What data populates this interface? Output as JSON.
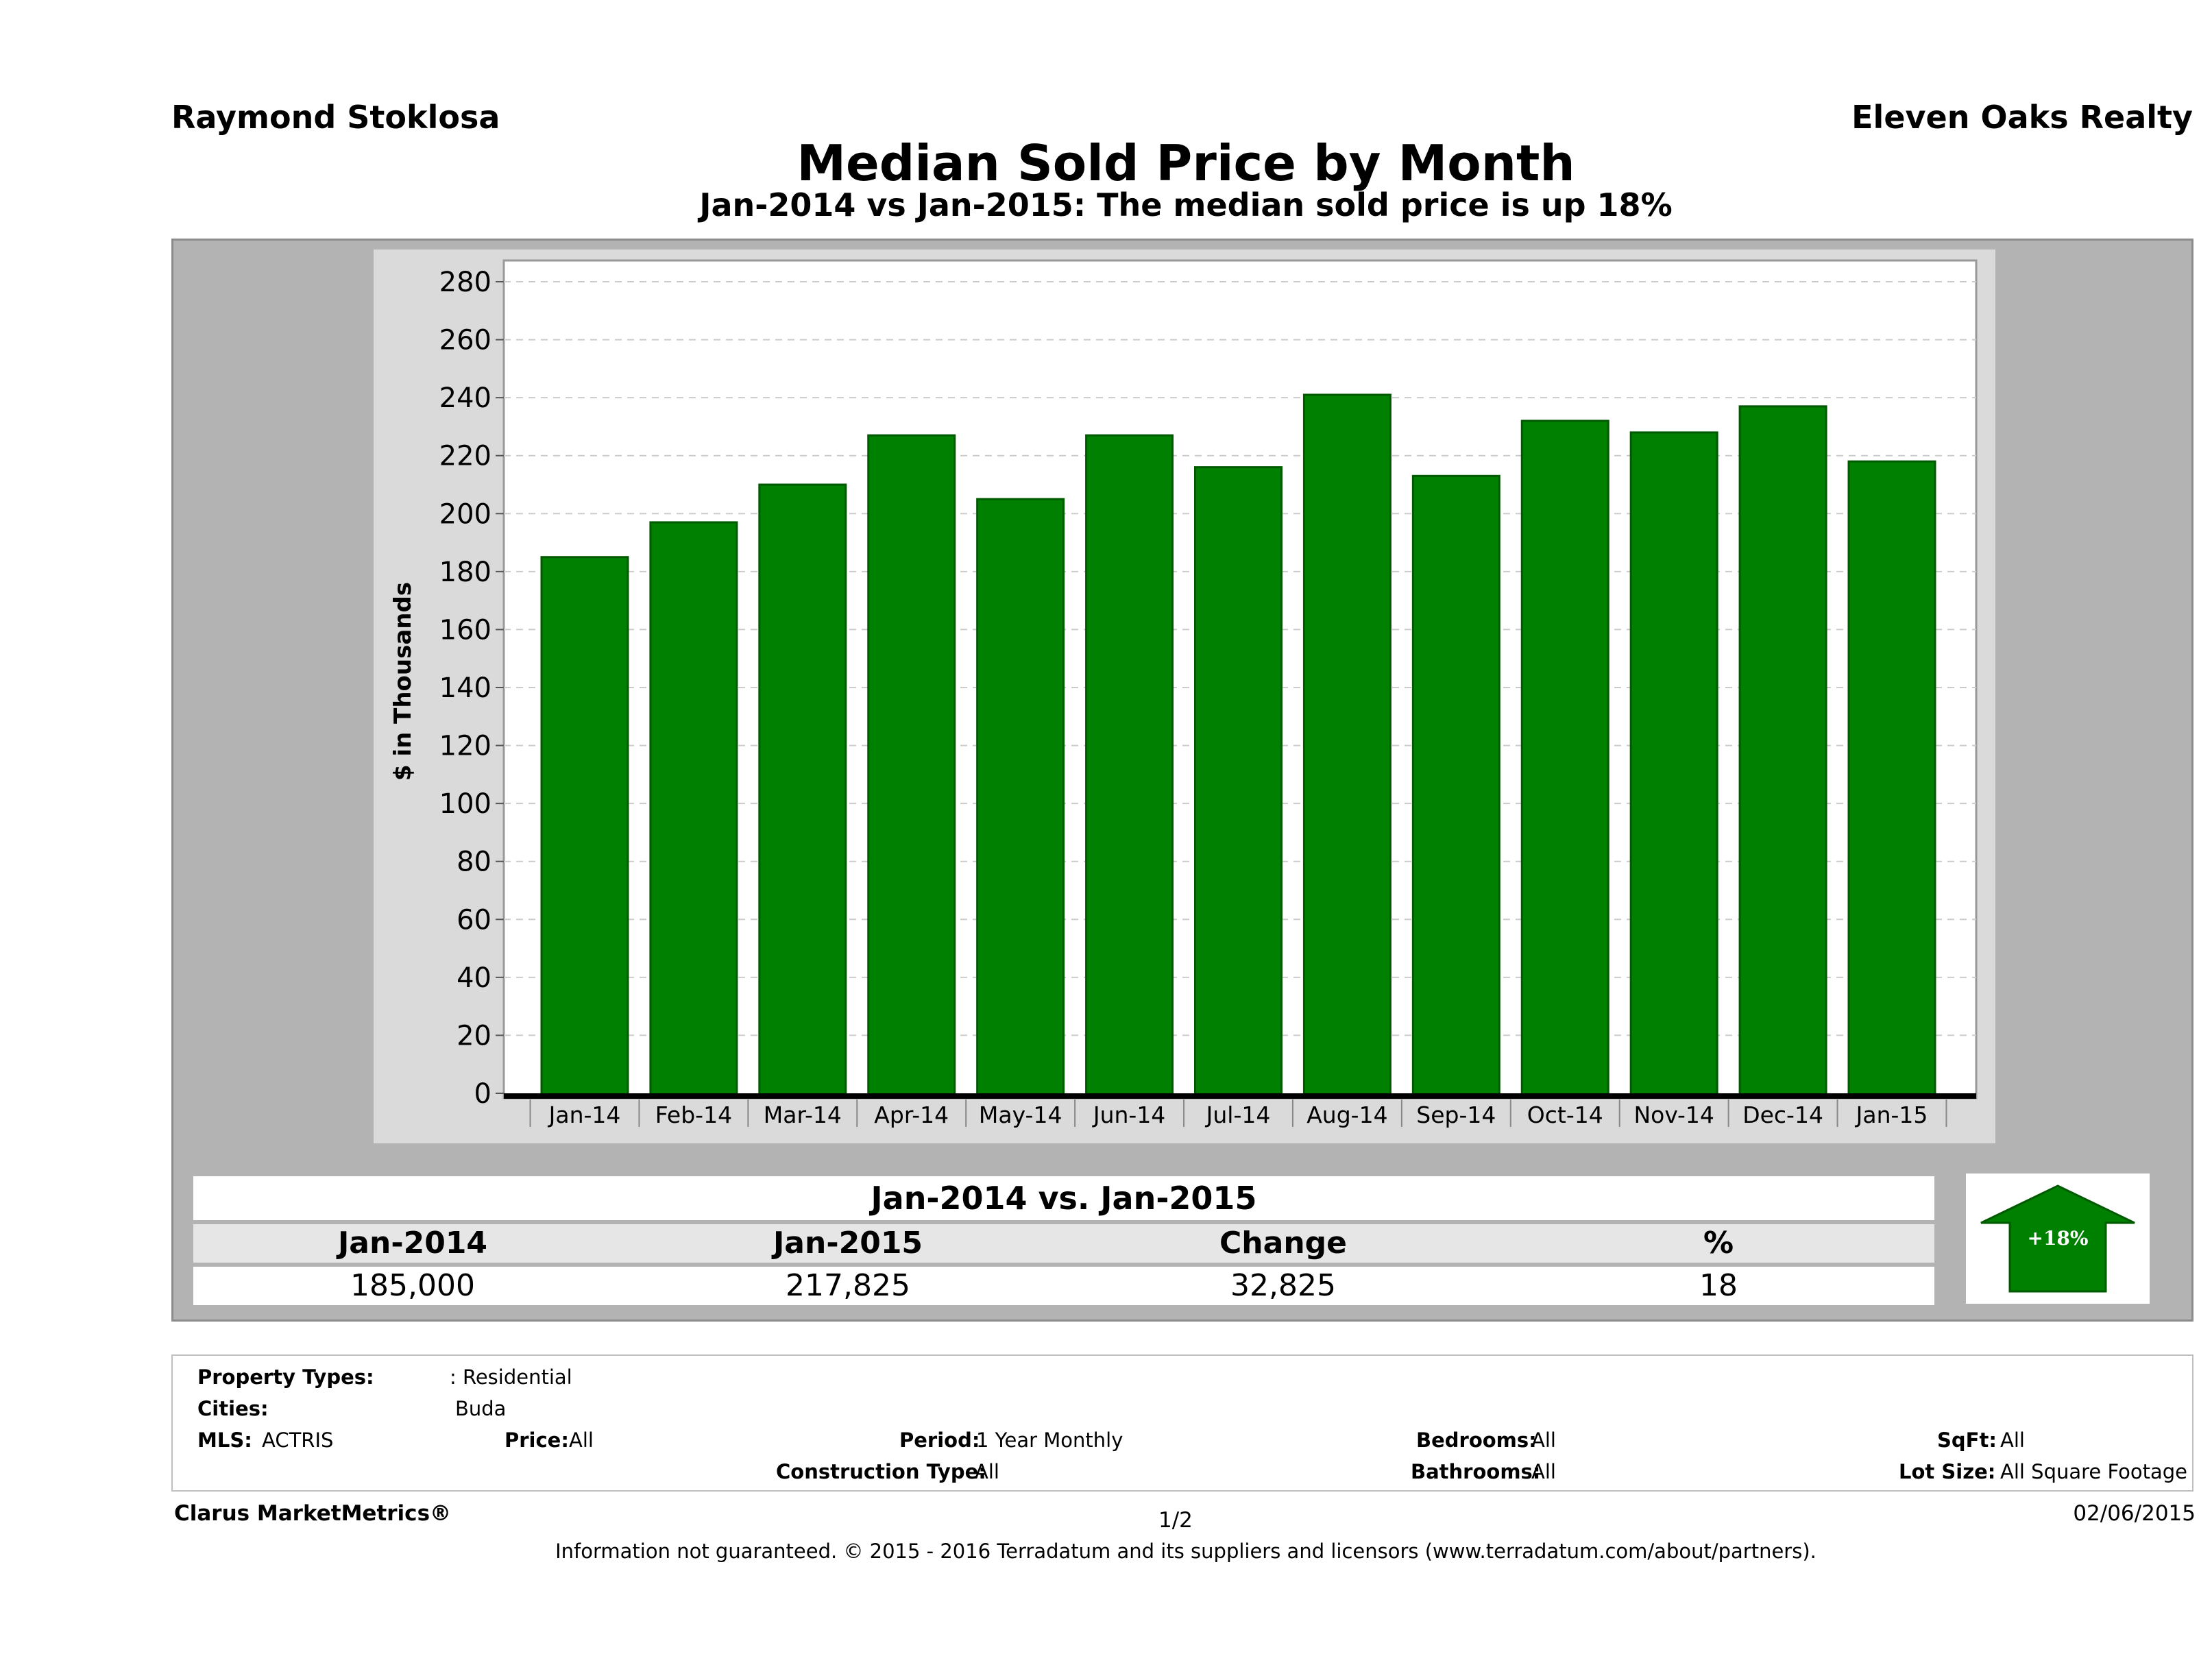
{
  "header": {
    "agent": "Raymond Stoklosa",
    "company": "Eleven Oaks Realty",
    "title": "Median Sold Price by Month",
    "subtitle": "Jan-2014 vs Jan-2015: The median sold price is up 18%"
  },
  "chart_data": {
    "type": "bar",
    "title": "Median Sold Price by Month",
    "subtitle": "Jan-2014 vs Jan-2015: The median sold price is up 18%",
    "xlabel": "",
    "ylabel": "$ in Thousands",
    "categories": [
      "Jan-14",
      "Feb-14",
      "Mar-14",
      "Apr-14",
      "May-14",
      "Jun-14",
      "Jul-14",
      "Aug-14",
      "Sep-14",
      "Oct-14",
      "Nov-14",
      "Dec-14",
      "Jan-15"
    ],
    "values": [
      185,
      197,
      210,
      227,
      205,
      227,
      216,
      241,
      213,
      232,
      228,
      237,
      218
    ],
    "ylim": [
      0,
      280
    ],
    "yticks": [
      0,
      20,
      40,
      60,
      80,
      100,
      120,
      140,
      160,
      180,
      200,
      220,
      240,
      260,
      280
    ],
    "grid": true,
    "bar_color": "#008000",
    "legend": "none"
  },
  "comparison": {
    "title": "Jan-2014 vs. Jan-2015",
    "headers": [
      "Jan-2014",
      "Jan-2015",
      "Change",
      "%"
    ],
    "values": [
      "185,000",
      "217,825",
      "32,825",
      "18"
    ],
    "badge": "+18%",
    "badge_color": "#008000"
  },
  "filters": {
    "property_types_label": "Property Types:",
    "property_types_value": ": Residential",
    "cities_label": "Cities:",
    "cities_value": "Buda",
    "mls_label": "MLS:",
    "mls_value": "ACTRIS",
    "price_label": "Price:",
    "price_value": "All",
    "period_label": "Period:",
    "period_value": "1 Year Monthly",
    "bedrooms_label": "Bedrooms:",
    "bedrooms_value": "All",
    "sqft_label": "SqFt:",
    "sqft_value": "All",
    "construction_label": "Construction Type:",
    "construction_value": "All",
    "bathrooms_label": "Bathrooms:",
    "bathrooms_value": "All",
    "lot_label": "Lot Size:",
    "lot_value": "All Square Footage"
  },
  "footer": {
    "brand": "Clarus MarketMetrics®",
    "page": "1/2",
    "date": "02/06/2015",
    "disclaimer": "Information not guaranteed. © 2015 - 2016 Terradatum and its suppliers and licensors (www.terradatum.com/about/partners)."
  }
}
